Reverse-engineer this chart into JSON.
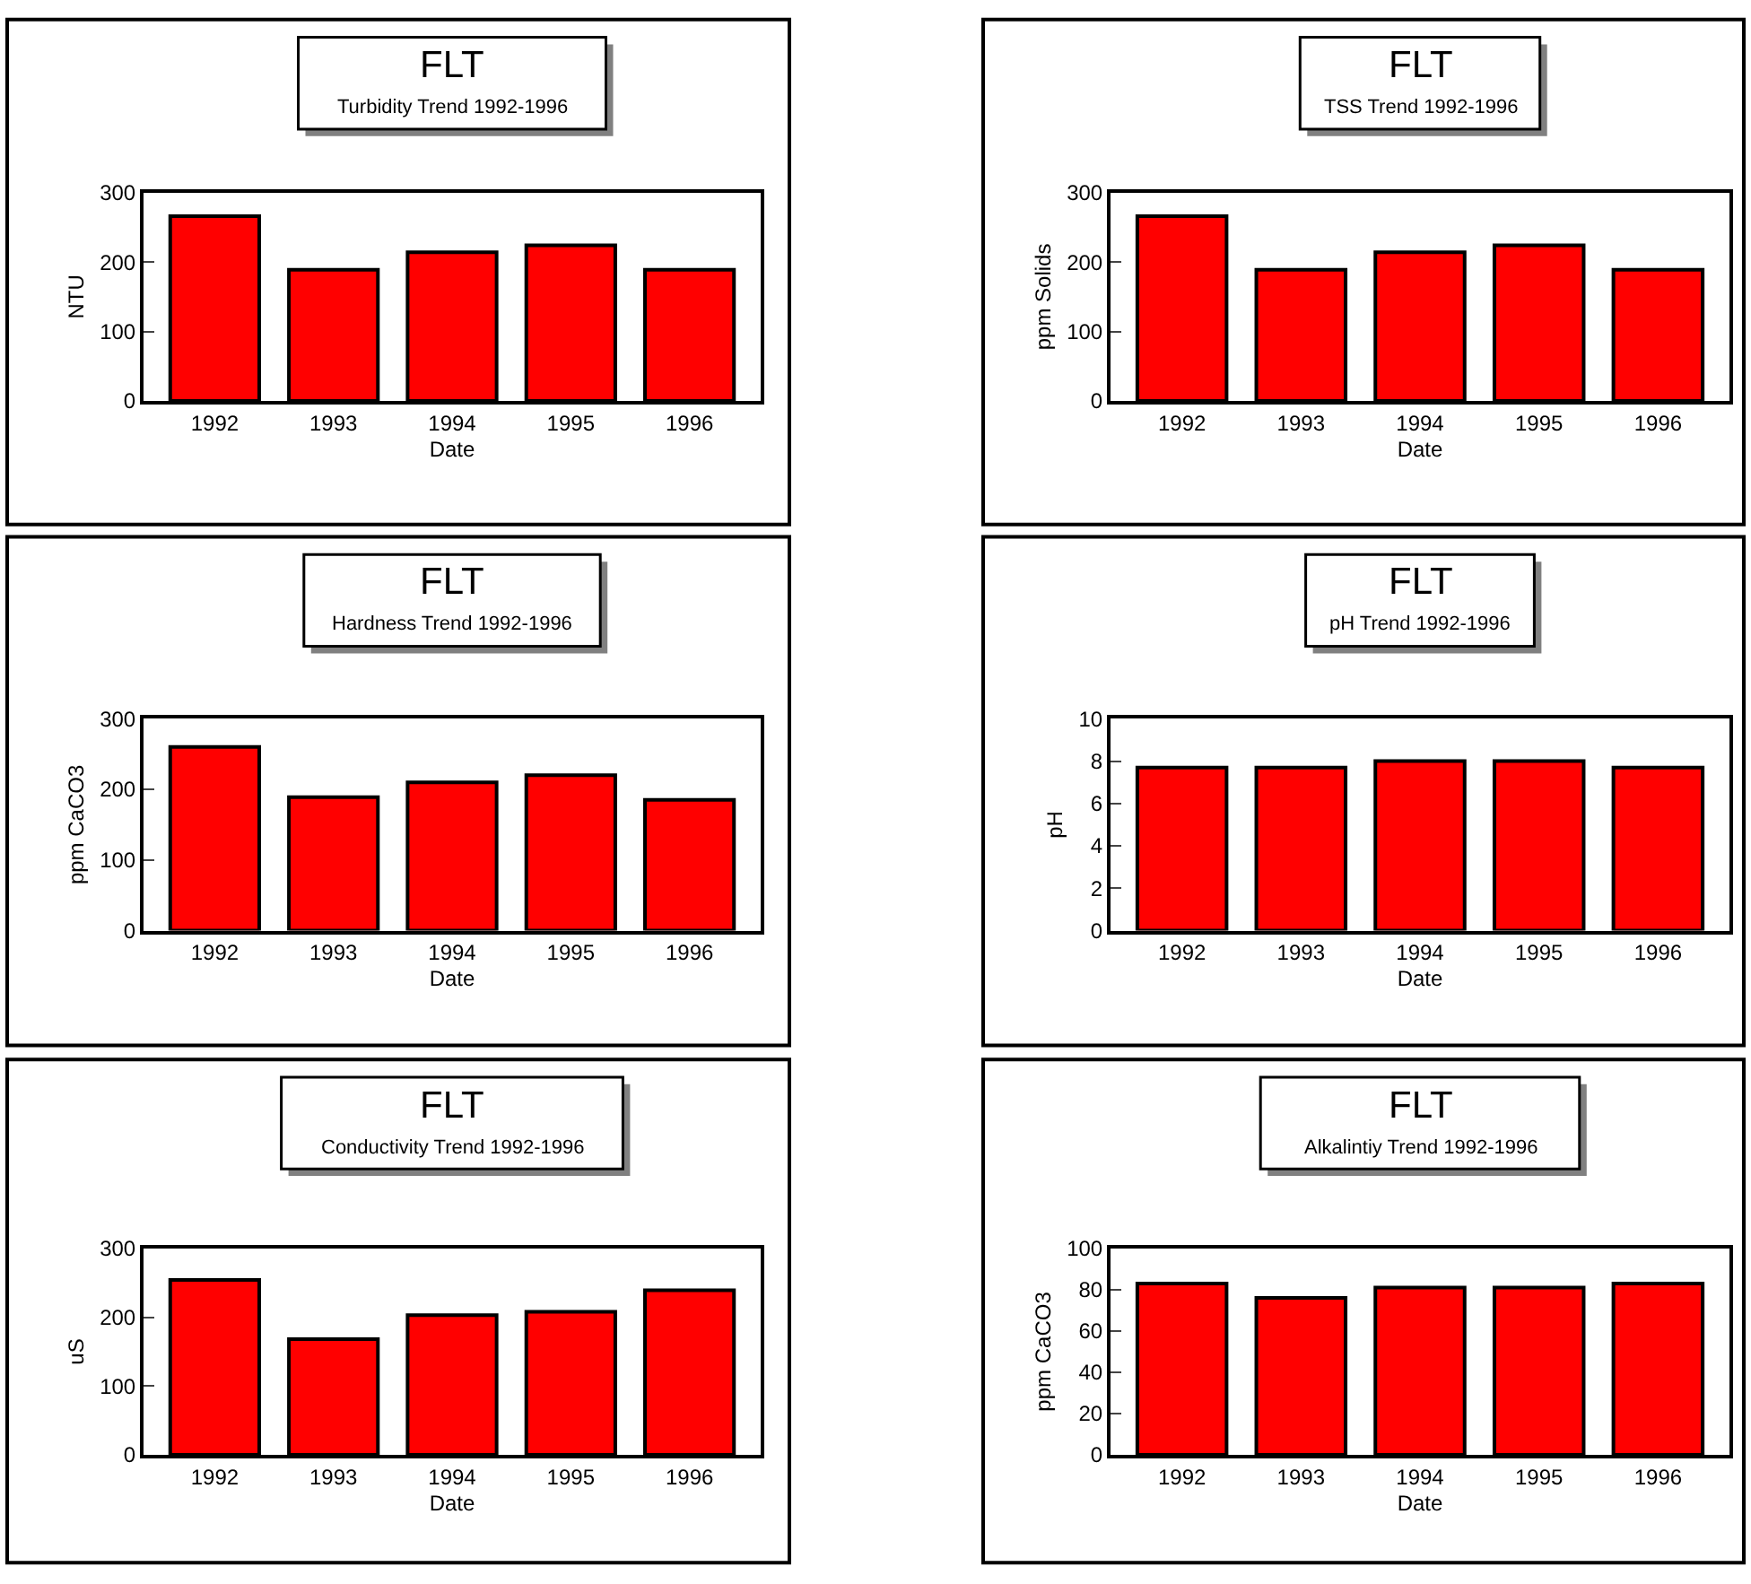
{
  "chart_data": [
    {
      "type": "bar",
      "title": "FLT",
      "subtitle": "Turbidity Trend 1992-1996",
      "xlabel": "Date",
      "ylabel": "NTU",
      "categories": [
        "1992",
        "1993",
        "1994",
        "1995",
        "1996"
      ],
      "values": [
        266,
        189,
        214,
        224,
        189
      ],
      "color": "#ff0000",
      "ylim": [
        0,
        300
      ],
      "yticks": [
        0,
        100,
        200,
        300
      ],
      "grid": false
    },
    {
      "type": "bar",
      "title": "FLT",
      "subtitle": "TSS Trend 1992-1996",
      "xlabel": "Date",
      "ylabel": "ppm Solids",
      "categories": [
        "1992",
        "1993",
        "1994",
        "1995",
        "1996"
      ],
      "values": [
        266,
        189,
        214,
        224,
        189
      ],
      "color": "#ff0000",
      "ylim": [
        0,
        300
      ],
      "yticks": [
        0,
        100,
        200,
        300
      ],
      "grid": false
    },
    {
      "type": "bar",
      "title": "FLT",
      "subtitle": "Hardness Trend 1992-1996",
      "xlabel": "Date",
      "ylabel": "ppm CaCO3",
      "categories": [
        "1992",
        "1993",
        "1994",
        "1995",
        "1996"
      ],
      "values": [
        260,
        189,
        210,
        220,
        185
      ],
      "color": "#ff0000",
      "ylim": [
        0,
        300
      ],
      "yticks": [
        0,
        100,
        200,
        300
      ],
      "grid": false
    },
    {
      "type": "bar",
      "title": "FLT",
      "subtitle": "pH Trend 1992-1996",
      "xlabel": "Date",
      "ylabel": "pH",
      "categories": [
        "1992",
        "1993",
        "1994",
        "1995",
        "1996"
      ],
      "values": [
        7.7,
        7.7,
        8.0,
        8.0,
        7.7
      ],
      "color": "#ff0000",
      "ylim": [
        0,
        10
      ],
      "yticks": [
        0,
        2,
        4,
        6,
        8,
        10
      ],
      "grid": false
    },
    {
      "type": "bar",
      "title": "FLT",
      "subtitle": "Conductivity Trend 1992-1996",
      "xlabel": "Date",
      "ylabel": "uS",
      "categories": [
        "1992",
        "1993",
        "1994",
        "1995",
        "1996"
      ],
      "values": [
        254,
        168,
        203,
        208,
        239
      ],
      "color": "#ff0000",
      "ylim": [
        0,
        300
      ],
      "yticks": [
        0,
        100,
        200,
        300
      ],
      "grid": false
    },
    {
      "type": "bar",
      "title": "FLT",
      "subtitle": "Alkalintiy Trend 1992-1996",
      "xlabel": "Date",
      "ylabel": "ppm CaCO3",
      "categories": [
        "1992",
        "1993",
        "1994",
        "1995",
        "1996"
      ],
      "values": [
        83,
        76,
        81,
        81,
        83
      ],
      "color": "#ff0000",
      "ylim": [
        0,
        100
      ],
      "yticks": [
        0,
        20,
        40,
        60,
        80,
        100
      ],
      "grid": false
    }
  ]
}
